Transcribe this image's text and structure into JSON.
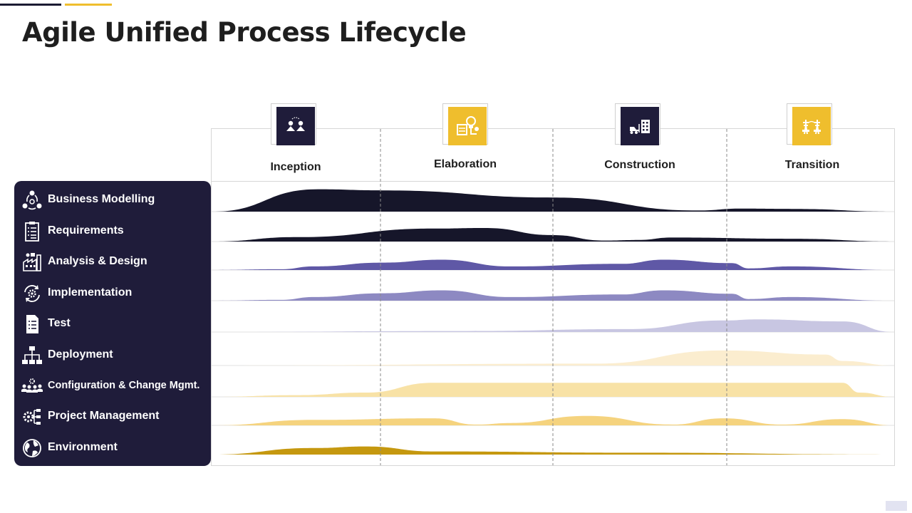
{
  "title": "Agile Unified Process Lifecycle",
  "colors": {
    "navy": "#1f1c3a",
    "gold": "#efbe2d",
    "series": [
      "#16162a",
      "#16162a",
      "#5f58a6",
      "#8d89c2",
      "#c8c6e2",
      "#fbedcf",
      "#f8e2a6",
      "#f5d37e",
      "#c5980f"
    ]
  },
  "phases": [
    {
      "label": "Inception",
      "icon": "people-meeting-icon"
    },
    {
      "label": "Elaboration",
      "icon": "idea-gear-icon"
    },
    {
      "label": "Construction",
      "icon": "forklift-building-icon"
    },
    {
      "label": "Transition",
      "icon": "transmission-tower-icon"
    }
  ],
  "disciplines": [
    {
      "label": "Business Modelling",
      "icon": "business-cycle-icon"
    },
    {
      "label": "Requirements",
      "icon": "checklist-icon"
    },
    {
      "label": "Analysis & Design",
      "icon": "factory-analysis-icon"
    },
    {
      "label": "Implementation",
      "icon": "gear-cycle-icon"
    },
    {
      "label": "Test",
      "icon": "document-list-icon"
    },
    {
      "label": "Deployment",
      "icon": "hierarchy-icon"
    },
    {
      "label": "Configuration & Change Mgmt.",
      "icon": "team-gear-icon"
    },
    {
      "label": "Project Management",
      "icon": "gears-flow-icon"
    },
    {
      "label": "Environment",
      "icon": "globe-gear-icon"
    }
  ],
  "chart_data": {
    "type": "area",
    "x_range": [
      0,
      4
    ],
    "y_range": [
      0,
      1
    ],
    "categories": [
      "Inception",
      "Elaboration",
      "Construction",
      "Transition"
    ],
    "series": [
      {
        "values": [
          [
            0,
            0
          ],
          [
            0.62,
            0.98
          ],
          [
            1,
            0.93
          ],
          [
            2,
            0.62
          ],
          [
            2.85,
            0.05
          ],
          [
            3.1,
            0.13
          ],
          [
            3.4,
            0.12
          ],
          [
            4,
            0
          ]
        ]
      },
      {
        "values": [
          [
            0,
            0
          ],
          [
            0.5,
            0.22
          ],
          [
            1.3,
            0.65
          ],
          [
            1.6,
            0.68
          ],
          [
            2,
            0.32
          ],
          [
            2.3,
            0.05
          ],
          [
            2.5,
            0.08
          ],
          [
            2.7,
            0.2
          ],
          [
            3.4,
            0.14
          ],
          [
            4,
            0
          ]
        ]
      },
      {
        "values": [
          [
            0,
            0
          ],
          [
            0.4,
            0.05
          ],
          [
            0.6,
            0.22
          ],
          [
            1,
            0.45
          ],
          [
            1.35,
            0.63
          ],
          [
            1.75,
            0.22
          ],
          [
            2.4,
            0.38
          ],
          [
            2.65,
            0.63
          ],
          [
            3.05,
            0.42
          ],
          [
            3.15,
            0.1
          ],
          [
            3.4,
            0.22
          ],
          [
            4,
            0
          ]
        ]
      },
      {
        "values": [
          [
            0,
            0
          ],
          [
            0.4,
            0.05
          ],
          [
            0.6,
            0.22
          ],
          [
            1,
            0.45
          ],
          [
            1.35,
            0.63
          ],
          [
            1.75,
            0.22
          ],
          [
            2.4,
            0.38
          ],
          [
            2.65,
            0.63
          ],
          [
            3.05,
            0.42
          ],
          [
            3.15,
            0.1
          ],
          [
            3.4,
            0.22
          ],
          [
            4,
            0
          ]
        ]
      },
      {
        "values": [
          [
            0,
            0
          ],
          [
            1.5,
            0.05
          ],
          [
            2.45,
            0.15
          ],
          [
            3,
            0.6
          ],
          [
            3.2,
            0.66
          ],
          [
            3.7,
            0.55
          ],
          [
            4,
            0
          ]
        ]
      },
      {
        "values": [
          [
            0,
            0
          ],
          [
            2.25,
            0.08
          ],
          [
            3,
            0.66
          ],
          [
            3.6,
            0.48
          ],
          [
            3.7,
            0.2
          ],
          [
            4,
            0
          ]
        ]
      },
      {
        "values": [
          [
            0,
            0
          ],
          [
            0.5,
            0.08
          ],
          [
            0.9,
            0.2
          ],
          [
            1.3,
            0.66
          ],
          [
            3.7,
            0.66
          ],
          [
            3.8,
            0.2
          ],
          [
            4,
            0
          ]
        ]
      },
      {
        "values": [
          [
            0,
            0
          ],
          [
            0.6,
            0.35
          ],
          [
            1.3,
            0.45
          ],
          [
            1.55,
            0.05
          ],
          [
            1.75,
            0.15
          ],
          [
            2.2,
            0.6
          ],
          [
            2.7,
            0.05
          ],
          [
            3,
            0.45
          ],
          [
            3.35,
            0.05
          ],
          [
            3.7,
            0.4
          ],
          [
            4,
            0
          ]
        ]
      },
      {
        "values": [
          [
            0,
            0
          ],
          [
            0.6,
            0.42
          ],
          [
            0.9,
            0.52
          ],
          [
            1.3,
            0.2
          ],
          [
            2.5,
            0.12
          ],
          [
            4,
            0
          ]
        ]
      }
    ]
  }
}
